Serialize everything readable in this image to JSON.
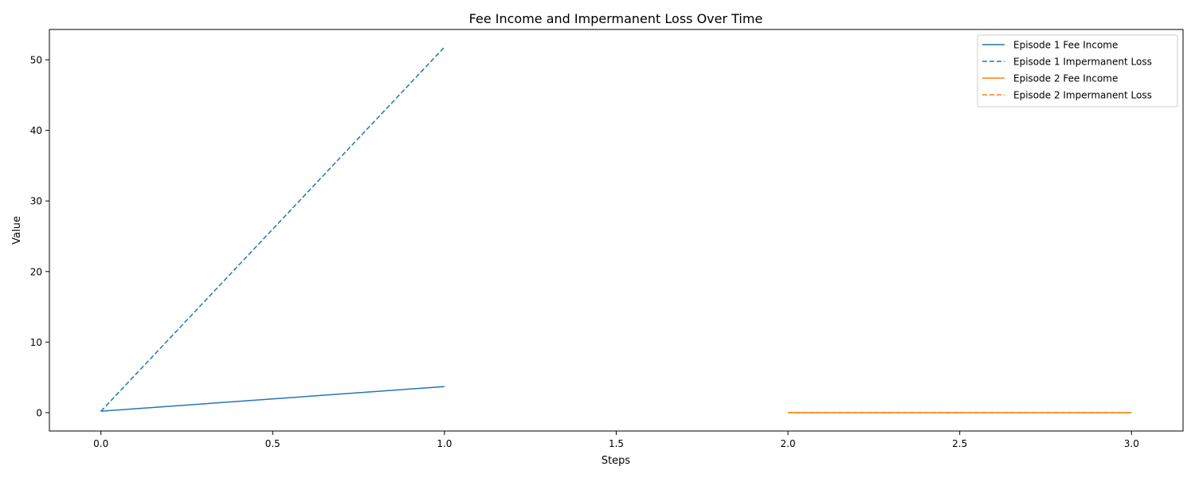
{
  "chart_data": {
    "type": "line",
    "title": "Fee Income and Impermanent Loss Over Time",
    "xlabel": "Steps",
    "ylabel": "Value",
    "xlim": [
      -0.15,
      3.15
    ],
    "ylim": [
      -2.6,
      54.3
    ],
    "x_ticks": [
      0.0,
      0.5,
      1.0,
      1.5,
      2.0,
      2.5,
      3.0
    ],
    "x_tick_labels": [
      "0.0",
      "0.5",
      "1.0",
      "1.5",
      "2.0",
      "2.5",
      "3.0"
    ],
    "y_ticks": [
      0,
      10,
      20,
      30,
      40,
      50
    ],
    "y_tick_labels": [
      "0",
      "10",
      "20",
      "30",
      "40",
      "50"
    ],
    "grid": false,
    "legend_position": "upper right",
    "series": [
      {
        "name": "Episode 1 Fee Income",
        "x": [
          0,
          1
        ],
        "values": [
          0.2,
          3.7
        ],
        "color": "#1f77b4",
        "style": "solid"
      },
      {
        "name": "Episode 1 Impermanent Loss",
        "x": [
          0,
          1
        ],
        "values": [
          0.2,
          51.8
        ],
        "color": "#1f77b4",
        "style": "dashed"
      },
      {
        "name": "Episode 2 Fee Income",
        "x": [
          2,
          3
        ],
        "values": [
          0.0,
          0.0
        ],
        "color": "#ff7f0e",
        "style": "solid"
      },
      {
        "name": "Episode 2 Impermanent Loss",
        "x": [
          2,
          3
        ],
        "values": [
          0.0,
          0.0
        ],
        "color": "#ff7f0e",
        "style": "dashed"
      }
    ]
  }
}
